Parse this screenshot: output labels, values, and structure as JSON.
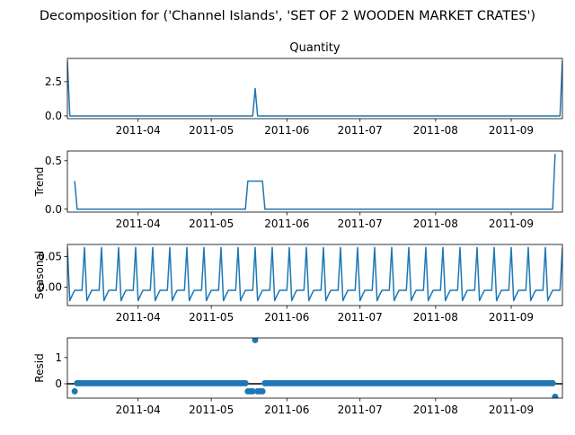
{
  "figure_title": "Decomposition for ('Channel Islands', 'SET OF 2 WOODEN MARKET CRATES')",
  "colors": {
    "line": "#1f77b4",
    "axis": "#000000",
    "background": "#ffffff"
  },
  "x_tick_labels": [
    "2011-04",
    "2011-05",
    "2011-06",
    "2011-07",
    "2011-08",
    "2011-09"
  ],
  "chart_data": [
    {
      "type": "line",
      "title": "Quantity",
      "ylabel": "",
      "xlim": [
        "2011-03-03",
        "2011-09-22"
      ],
      "ylim": [
        -0.2,
        4.2
      ],
      "y_ticks": [
        "0.0",
        "2.5"
      ],
      "points": [
        [
          "2011-03-03",
          4
        ],
        [
          "2011-03-04",
          0
        ],
        [
          "2011-05-18",
          0
        ],
        [
          "2011-05-19",
          2
        ],
        [
          "2011-05-20",
          0
        ],
        [
          "2011-09-21",
          0
        ],
        [
          "2011-09-22",
          4
        ]
      ]
    },
    {
      "type": "line",
      "title": "",
      "ylabel": "Trend",
      "xlim": [
        "2011-03-03",
        "2011-09-22"
      ],
      "ylim": [
        -0.03,
        0.6
      ],
      "y_ticks": [
        "0.0",
        "0.5"
      ],
      "points": [
        [
          "2011-03-06",
          0.29
        ],
        [
          "2011-03-07",
          0
        ],
        [
          "2011-05-15",
          0
        ],
        [
          "2011-05-16",
          0.29
        ],
        [
          "2011-05-22",
          0.29
        ],
        [
          "2011-05-23",
          0
        ],
        [
          "2011-09-18",
          0
        ],
        [
          "2011-09-19",
          0.57
        ]
      ]
    },
    {
      "type": "line",
      "title": "",
      "ylabel": "Seasonal",
      "xlim": [
        "2011-03-03",
        "2011-09-22"
      ],
      "ylim": [
        -0.03,
        0.07
      ],
      "y_ticks": [
        "0.00",
        "0.05"
      ],
      "period_days": 7,
      "start": "2011-03-03",
      "weekly_pattern": [
        0.065,
        -0.022,
        -0.013,
        -0.005,
        -0.005,
        -0.005,
        -0.005
      ],
      "end": "2011-09-22"
    },
    {
      "type": "scatter",
      "title": "",
      "ylabel": "Resid",
      "xlim": [
        "2011-03-03",
        "2011-09-22"
      ],
      "ylim": [
        -0.55,
        1.75
      ],
      "y_ticks": [
        "0",
        "1"
      ],
      "baseline": 0,
      "start": "2011-03-06",
      "end": "2011-09-19",
      "default_value": 0.02,
      "overrides": [
        [
          "2011-03-06",
          -0.29
        ],
        [
          "2011-05-16",
          -0.29
        ],
        [
          "2011-05-17",
          -0.29
        ],
        [
          "2011-05-18",
          -0.29
        ],
        [
          "2011-05-19",
          1.67
        ],
        [
          "2011-05-20",
          -0.29
        ],
        [
          "2011-05-21",
          -0.29
        ],
        [
          "2011-05-22",
          -0.29
        ],
        [
          "2011-09-19",
          -0.5
        ]
      ]
    }
  ]
}
